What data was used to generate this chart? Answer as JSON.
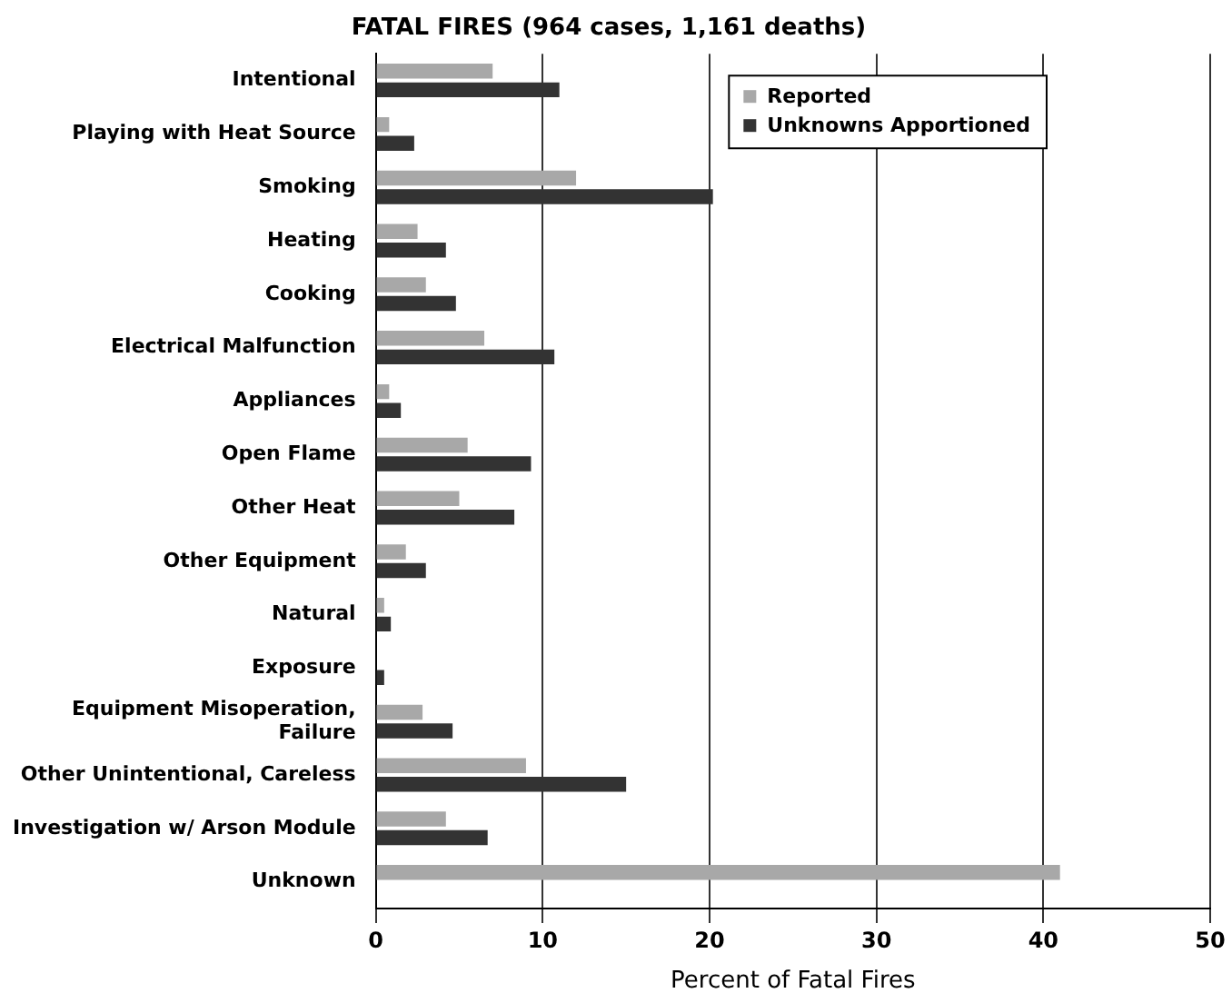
{
  "chart_data": {
    "type": "bar",
    "orientation": "horizontal",
    "title": "FATAL FIRES (964 cases, 1,161 deaths)",
    "xlabel": "Percent of Fatal Fires",
    "categories": [
      "Intentional",
      "Playing with Heat Source",
      "Smoking",
      "Heating",
      "Cooking",
      "Electrical Malfunction",
      "Appliances",
      "Open Flame",
      "Other Heat",
      "Other Equipment",
      "Natural",
      "Exposure",
      "Equipment Misoperation, Failure",
      "Other Unintentional, Careless",
      "Investigation w/ Arson Module",
      "Unknown"
    ],
    "series": [
      {
        "name": "Reported",
        "color": "#a8a8a8",
        "values": [
          7,
          0.8,
          12,
          2.5,
          3,
          6.5,
          0.8,
          5.5,
          5,
          1.8,
          0.5,
          null,
          2.8,
          9,
          4.2,
          41
        ]
      },
      {
        "name": "Unknowns Apportioned",
        "color": "#333333",
        "values": [
          11,
          2.3,
          20.2,
          4.2,
          4.8,
          10.7,
          1.5,
          9.3,
          8.3,
          3,
          0.9,
          0.5,
          4.6,
          15,
          6.7,
          null
        ]
      }
    ],
    "xlim": [
      0,
      50
    ],
    "xticks": [
      0,
      10,
      20,
      30,
      40,
      50
    ],
    "grid": "x",
    "legend": "top right"
  }
}
